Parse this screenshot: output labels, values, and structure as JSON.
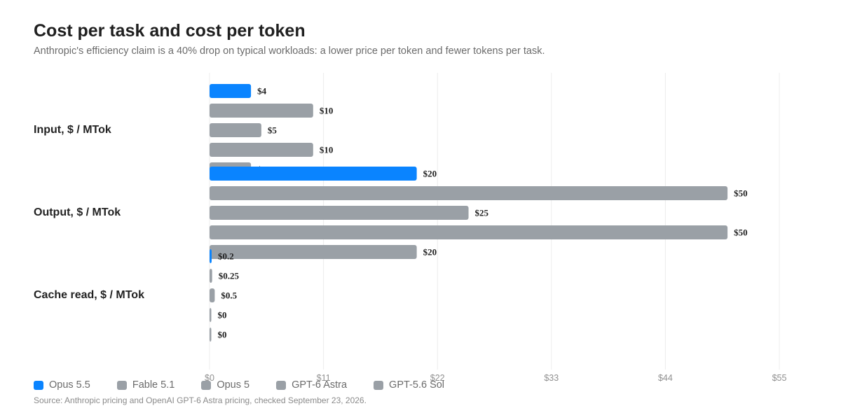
{
  "header": {
    "title": "Cost per task and cost per token",
    "subtitle": "Anthropic's efficiency claim is a 40% drop on typical workloads: a lower price per token and fewer tokens per task."
  },
  "legend": [
    {
      "label": "Opus 5.5",
      "color": "#0a84ff"
    },
    {
      "label": "Fable 5.1",
      "color": "#9aa0a6"
    },
    {
      "label": "Opus 5",
      "color": "#9aa0a6"
    },
    {
      "label": "GPT-6 Astra",
      "color": "#9aa0a6"
    },
    {
      "label": "GPT-5.6 Sol",
      "color": "#9aa0a6"
    }
  ],
  "source": "Source: Anthropic pricing and OpenAI GPT-6 Astra pricing, checked September 23, 2026.",
  "chart_data": {
    "type": "bar",
    "orientation": "horizontal",
    "categories": [
      "Input, $ / MTok",
      "Output, $ / MTok",
      "Cache read, $ / MTok"
    ],
    "series": [
      {
        "name": "Opus 5.5",
        "color": "#0a84ff",
        "values": [
          4,
          20,
          0.2
        ],
        "labels": [
          "$4",
          "$20",
          "$0.2"
        ]
      },
      {
        "name": "Fable 5.1",
        "color": "#9aa0a6",
        "values": [
          10,
          50,
          0.25
        ],
        "labels": [
          "$10",
          "$50",
          "$0.25"
        ]
      },
      {
        "name": "Opus 5",
        "color": "#9aa0a6",
        "values": [
          5,
          25,
          0.5
        ],
        "labels": [
          "$5",
          "$25",
          "$0.5"
        ]
      },
      {
        "name": "GPT-6 Astra",
        "color": "#9aa0a6",
        "values": [
          10,
          50,
          0
        ],
        "labels": [
          "$10",
          "$50",
          "$0"
        ]
      },
      {
        "name": "GPT-5.6 Sol",
        "color": "#9aa0a6",
        "values": [
          4,
          20,
          0
        ],
        "labels": [
          "$4",
          "$20",
          "$0"
        ]
      }
    ],
    "xlim": [
      0,
      55
    ],
    "xticks": [
      0,
      11,
      22,
      33,
      44,
      55
    ],
    "xtick_labels": [
      "$0",
      "$11",
      "$22",
      "$33",
      "$44",
      "$55"
    ],
    "grid": true,
    "legend_position": "bottom-left"
  }
}
